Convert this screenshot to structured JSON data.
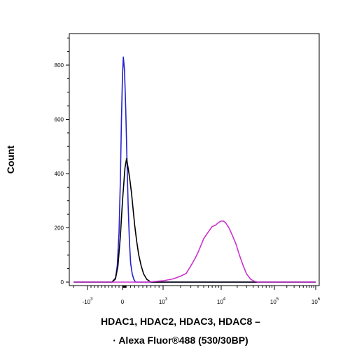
{
  "chart_data": {
    "type": "line",
    "title": "",
    "ylabel": "Count",
    "xlabel_line1": "HDAC1, HDAC2, HDAC3, HDAC8 –",
    "xlabel_line2": "· Alexa Fluor®488 (530/30BP)",
    "x_scale": "biexponential",
    "xlim": [
      -2000,
      1000000
    ],
    "ylim": [
      0,
      900
    ],
    "grid": false,
    "legend": "none",
    "x_ticks": [
      {
        "value": -1000,
        "base": "-10",
        "exp": "3"
      },
      {
        "value": 0,
        "base": "0",
        "exp": ""
      },
      {
        "value": 1000,
        "base": "10",
        "exp": "3"
      },
      {
        "value": 10000,
        "base": "10",
        "exp": "4"
      },
      {
        "value": 100000,
        "base": "10",
        "exp": "5"
      },
      {
        "value": 1000000,
        "base": "10",
        "exp": "6"
      }
    ],
    "y_ticks": [
      0,
      200,
      400,
      600,
      800
    ],
    "series": [
      {
        "color": "#2222cc",
        "points": [
          [
            -2000,
            0
          ],
          [
            -300,
            0
          ],
          [
            -200,
            15
          ],
          [
            -150,
            60
          ],
          [
            -100,
            180
          ],
          [
            -60,
            380
          ],
          [
            -30,
            600
          ],
          [
            0,
            760
          ],
          [
            20,
            830
          ],
          [
            50,
            780
          ],
          [
            80,
            640
          ],
          [
            110,
            450
          ],
          [
            140,
            280
          ],
          [
            170,
            150
          ],
          [
            200,
            70
          ],
          [
            240,
            30
          ],
          [
            280,
            10
          ],
          [
            320,
            0
          ],
          [
            1000000,
            0
          ]
        ]
      },
      {
        "color": "#000000",
        "points": [
          [
            -2000,
            0
          ],
          [
            -300,
            0
          ],
          [
            -200,
            12
          ],
          [
            -130,
            60
          ],
          [
            -60,
            170
          ],
          [
            0,
            300
          ],
          [
            60,
            420
          ],
          [
            100,
            455
          ],
          [
            140,
            420
          ],
          [
            180,
            380
          ],
          [
            220,
            330
          ],
          [
            260,
            270
          ],
          [
            300,
            210
          ],
          [
            350,
            150
          ],
          [
            400,
            100
          ],
          [
            460,
            60
          ],
          [
            520,
            30
          ],
          [
            600,
            10
          ],
          [
            700,
            0
          ],
          [
            1000000,
            0
          ]
        ]
      },
      {
        "color": "#cc33cc",
        "points": [
          [
            -2000,
            0
          ],
          [
            600,
            0
          ],
          [
            1000,
            5
          ],
          [
            1500,
            12
          ],
          [
            2000,
            22
          ],
          [
            2500,
            32
          ],
          [
            3000,
            60
          ],
          [
            3500,
            85
          ],
          [
            4000,
            110
          ],
          [
            5000,
            160
          ],
          [
            6000,
            185
          ],
          [
            7000,
            205
          ],
          [
            8000,
            210
          ],
          [
            9000,
            220
          ],
          [
            10000,
            225
          ],
          [
            11000,
            225
          ],
          [
            12000,
            220
          ],
          [
            14000,
            200
          ],
          [
            16000,
            175
          ],
          [
            19000,
            140
          ],
          [
            22000,
            100
          ],
          [
            26000,
            60
          ],
          [
            30000,
            30
          ],
          [
            36000,
            10
          ],
          [
            42000,
            3
          ],
          [
            50000,
            0
          ],
          [
            1000000,
            0
          ]
        ]
      }
    ]
  }
}
